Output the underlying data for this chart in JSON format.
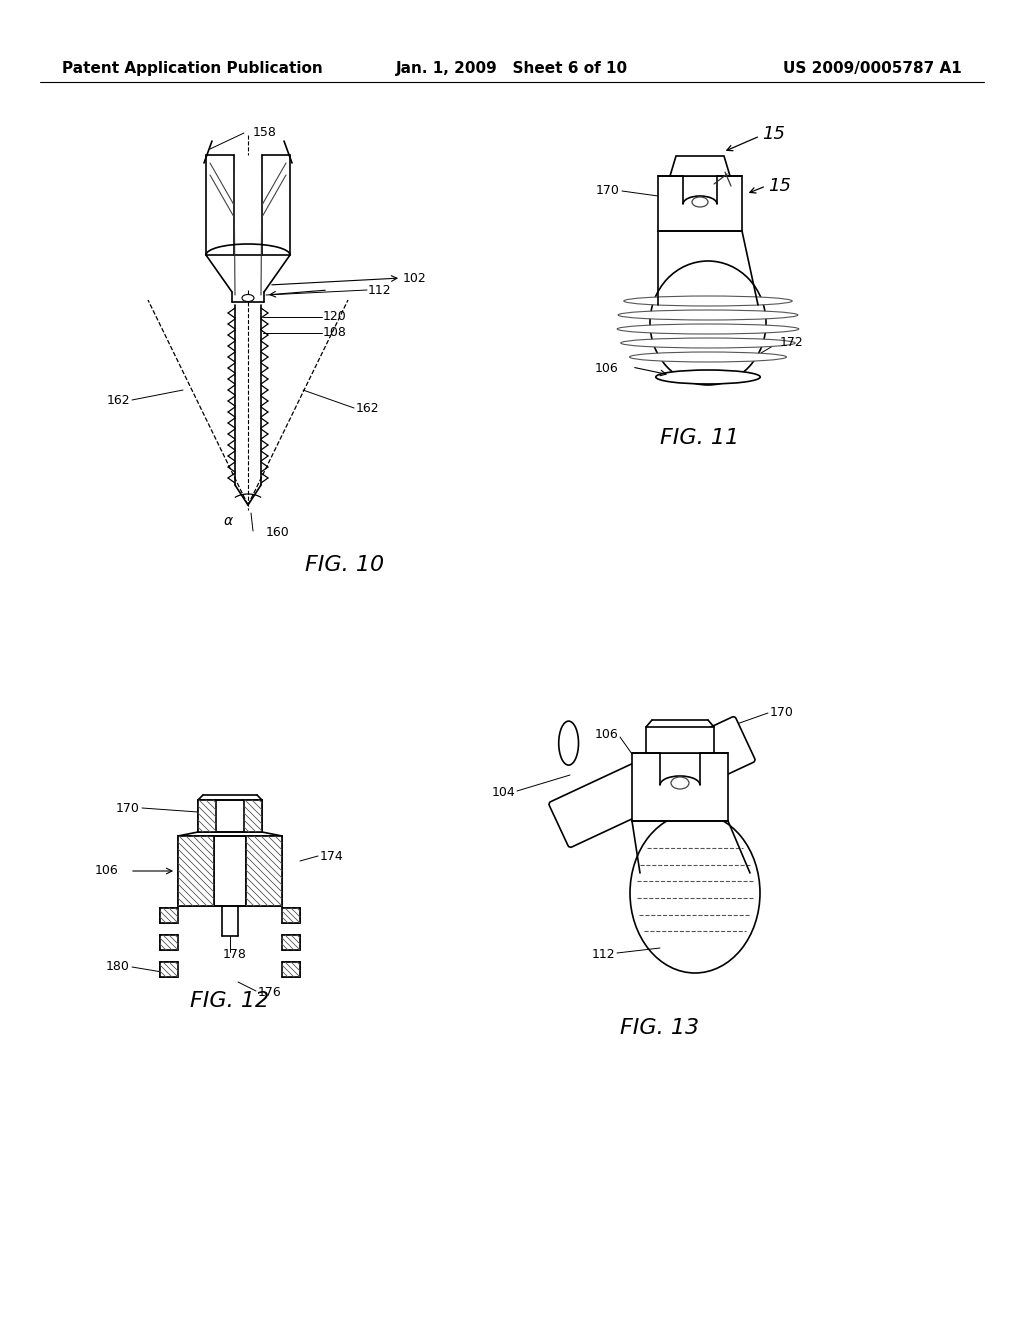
{
  "background_color": "#ffffff",
  "header_left": "Patent Application Publication",
  "header_center": "Jan. 1, 2009   Sheet 6 of 10",
  "header_right": "US 2009/0005787 A1",
  "fig10_label": "FIG. 10",
  "fig11_label": "FIG. 11",
  "fig12_label": "FIG. 12",
  "fig13_label": "FIG. 13",
  "lc": "#000000",
  "lw": 1.2
}
